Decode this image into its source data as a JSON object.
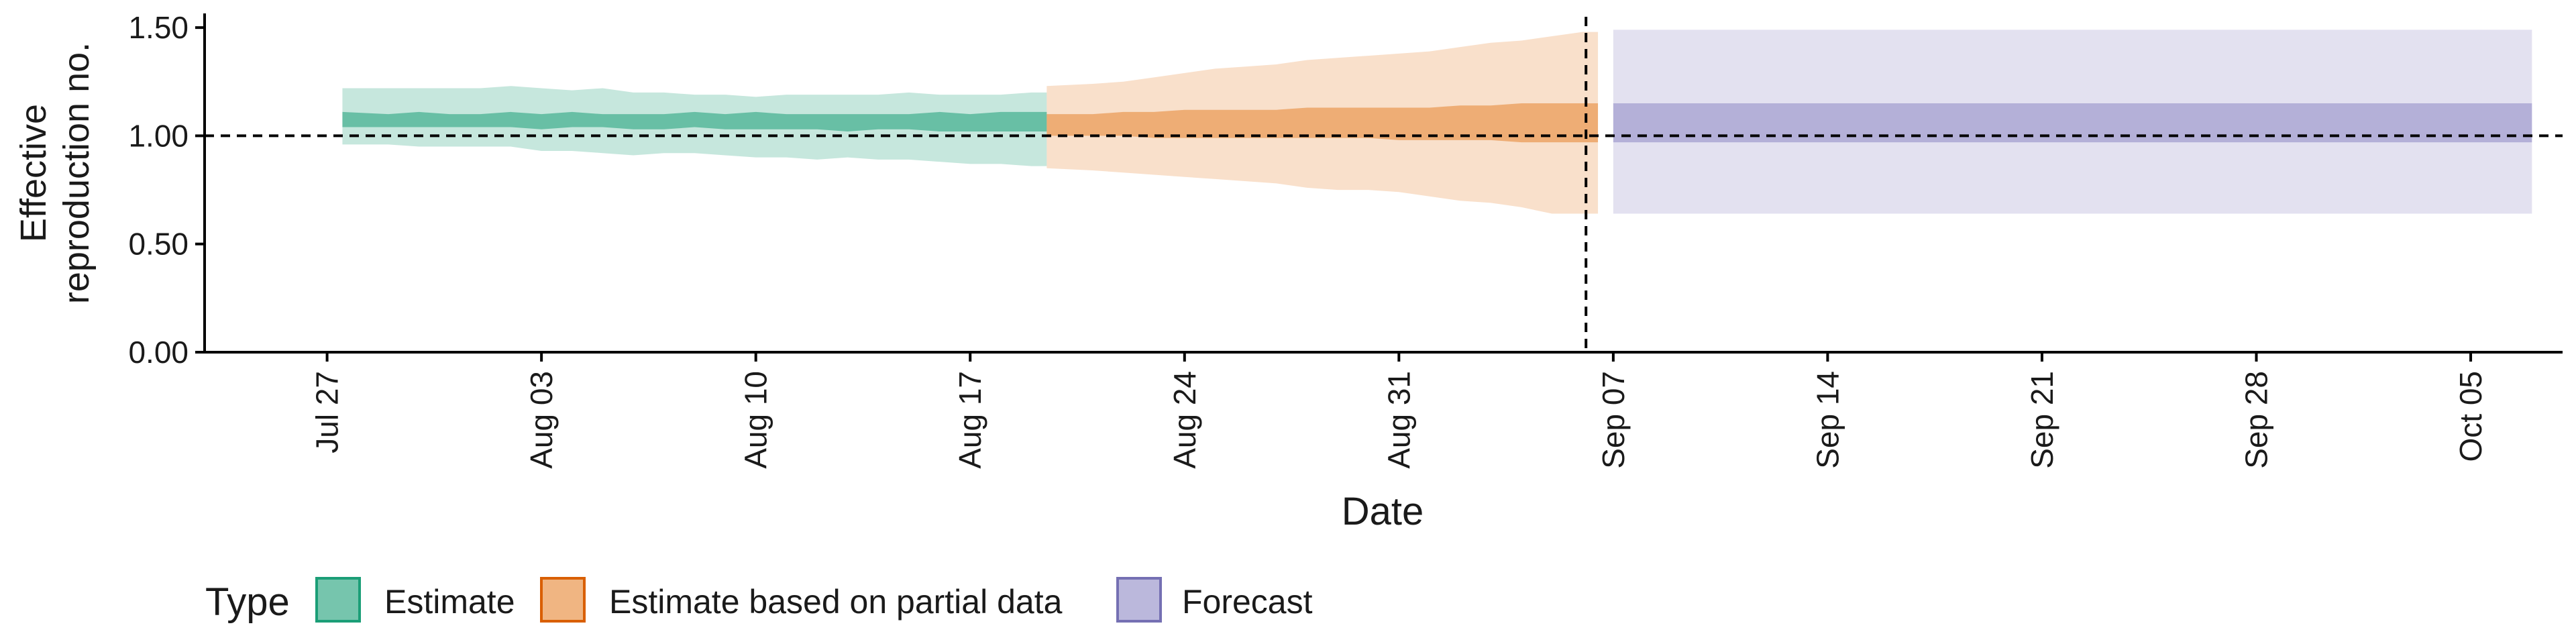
{
  "chart_data": {
    "type": "area",
    "xlabel": "Date",
    "ylabel_lines": [
      "Effective",
      "reproduction no."
    ],
    "ylim": [
      0,
      1.55
    ],
    "xlim": [
      "2020-07-23",
      "2020-10-08"
    ],
    "y_ticks": [
      {
        "value": 0.0,
        "label": "0.00"
      },
      {
        "value": 0.5,
        "label": "0.50"
      },
      {
        "value": 1.0,
        "label": "1.00"
      },
      {
        "value": 1.5,
        "label": "1.50"
      }
    ],
    "x_ticks": [
      {
        "date": "2020-07-27",
        "label": "Jul 27"
      },
      {
        "date": "2020-08-03",
        "label": "Aug 03"
      },
      {
        "date": "2020-08-10",
        "label": "Aug 10"
      },
      {
        "date": "2020-08-17",
        "label": "Aug 17"
      },
      {
        "date": "2020-08-24",
        "label": "Aug 24"
      },
      {
        "date": "2020-08-31",
        "label": "Aug 31"
      },
      {
        "date": "2020-09-07",
        "label": "Sep 07"
      },
      {
        "date": "2020-09-14",
        "label": "Sep 14"
      },
      {
        "date": "2020-09-21",
        "label": "Sep 21"
      },
      {
        "date": "2020-09-28",
        "label": "Sep 28"
      },
      {
        "date": "2020-10-05",
        "label": "Oct 05"
      }
    ],
    "reference_line_y": 1.0,
    "forecast_date": "2020-09-06",
    "legend_title": "Type",
    "legend_position": "bottom-left",
    "series": [
      {
        "name": "Estimate",
        "fill": "#1b9e77",
        "stroke": "#1b9e77",
        "x": [
          "2020-07-28",
          "2020-07-29",
          "2020-07-30",
          "2020-07-31",
          "2020-08-01",
          "2020-08-02",
          "2020-08-03",
          "2020-08-04",
          "2020-08-05",
          "2020-08-06",
          "2020-08-07",
          "2020-08-08",
          "2020-08-09",
          "2020-08-10",
          "2020-08-11",
          "2020-08-12",
          "2020-08-13",
          "2020-08-14",
          "2020-08-15",
          "2020-08-16",
          "2020-08-17",
          "2020-08-18",
          "2020-08-19"
        ],
        "upper90": [
          1.22,
          1.22,
          1.22,
          1.22,
          1.22,
          1.23,
          1.22,
          1.21,
          1.22,
          1.2,
          1.2,
          1.19,
          1.19,
          1.18,
          1.19,
          1.19,
          1.19,
          1.19,
          1.2,
          1.19,
          1.19,
          1.19,
          1.2
        ],
        "upper50": [
          1.11,
          1.1,
          1.11,
          1.1,
          1.1,
          1.11,
          1.1,
          1.11,
          1.1,
          1.1,
          1.1,
          1.11,
          1.1,
          1.11,
          1.1,
          1.1,
          1.1,
          1.1,
          1.1,
          1.11,
          1.1,
          1.11,
          1.11
        ],
        "lower50": [
          1.04,
          1.04,
          1.04,
          1.04,
          1.04,
          1.04,
          1.03,
          1.04,
          1.04,
          1.03,
          1.03,
          1.04,
          1.03,
          1.03,
          1.03,
          1.03,
          1.02,
          1.03,
          1.03,
          1.02,
          1.02,
          1.02,
          1.02
        ],
        "lower90": [
          0.96,
          0.96,
          0.95,
          0.95,
          0.95,
          0.95,
          0.93,
          0.93,
          0.92,
          0.91,
          0.92,
          0.92,
          0.91,
          0.9,
          0.9,
          0.89,
          0.9,
          0.89,
          0.89,
          0.88,
          0.87,
          0.87,
          0.86
        ]
      },
      {
        "name": "Estimate based on partial data",
        "fill": "#e6832f",
        "stroke": "#d95f02",
        "x": [
          "2020-08-20",
          "2020-08-21",
          "2020-08-22",
          "2020-08-23",
          "2020-08-24",
          "2020-08-25",
          "2020-08-26",
          "2020-08-27",
          "2020-08-28",
          "2020-08-29",
          "2020-08-30",
          "2020-08-31",
          "2020-09-01",
          "2020-09-02",
          "2020-09-03",
          "2020-09-04",
          "2020-09-05",
          "2020-09-06"
        ],
        "upper90": [
          1.23,
          1.24,
          1.25,
          1.27,
          1.29,
          1.31,
          1.32,
          1.33,
          1.35,
          1.36,
          1.37,
          1.38,
          1.39,
          1.41,
          1.43,
          1.44,
          1.46,
          1.48
        ],
        "upper50": [
          1.1,
          1.1,
          1.11,
          1.11,
          1.12,
          1.12,
          1.12,
          1.12,
          1.13,
          1.13,
          1.13,
          1.13,
          1.13,
          1.14,
          1.14,
          1.15,
          1.15,
          1.15
        ],
        "lower50": [
          1.0,
          1.0,
          1.0,
          0.99,
          0.99,
          0.99,
          0.99,
          0.99,
          0.99,
          0.99,
          0.99,
          0.98,
          0.98,
          0.98,
          0.98,
          0.97,
          0.97,
          0.97
        ],
        "lower90": [
          0.85,
          0.84,
          0.83,
          0.82,
          0.81,
          0.8,
          0.79,
          0.78,
          0.76,
          0.75,
          0.75,
          0.74,
          0.72,
          0.7,
          0.69,
          0.67,
          0.64,
          0.64
        ]
      },
      {
        "name": "Forecast",
        "fill": "#8e89c4",
        "stroke": "#7570b3",
        "x": [
          "2020-09-07",
          "2020-10-07"
        ],
        "upper90": [
          1.49,
          1.49
        ],
        "upper50": [
          1.15,
          1.15
        ],
        "lower50": [
          0.97,
          0.97
        ],
        "lower90": [
          0.64,
          0.64
        ]
      }
    ]
  }
}
